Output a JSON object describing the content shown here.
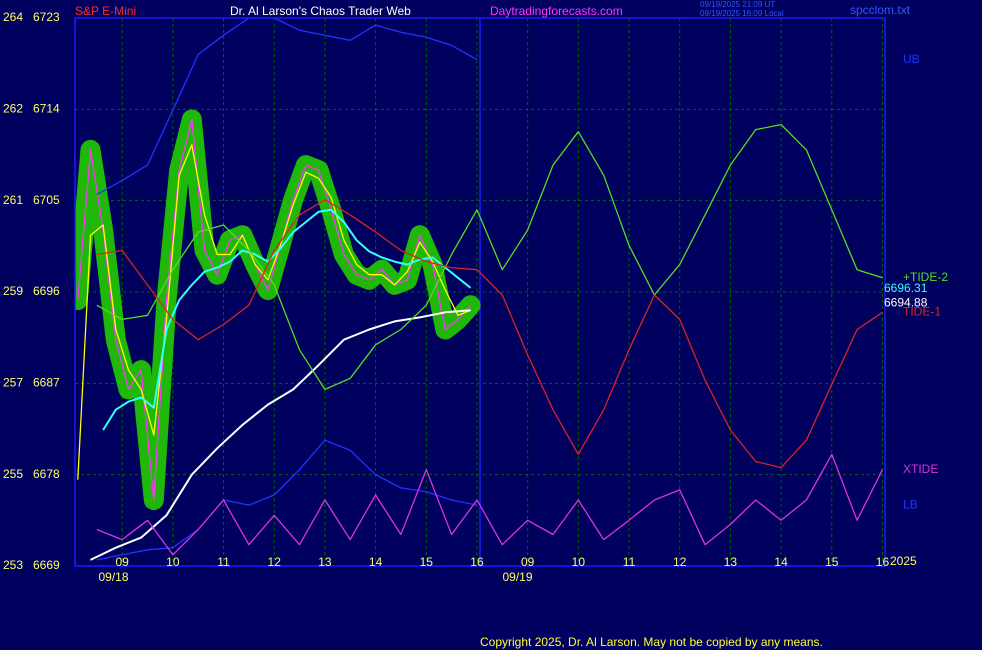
{
  "chart_data": {
    "type": "line",
    "symbol": "S&P E-Mini",
    "title": "Dr. Al Larson's Chaos Trader Web",
    "site": "Daytradingforecasts.com",
    "timestamps": [
      "09/19/2025 21:09 UT",
      "09/19/2025 16:09 Local"
    ],
    "file": "spcclom.txt",
    "copyright": "Copyright 2025, Dr. Al Larson. May not be copied by any means.",
    "year": "2025",
    "grid": true,
    "ylim": [
      6669,
      6723
    ],
    "yticks": [
      6669,
      6678,
      6687,
      6696,
      6705,
      6714,
      6723
    ],
    "y2ticks": [
      253,
      255,
      257,
      259,
      261,
      262,
      264
    ],
    "xlim": [
      -0.93,
      15.05
    ],
    "xticks": [
      {
        "value": 0,
        "label": "09"
      },
      {
        "value": 1,
        "label": "10"
      },
      {
        "value": 2,
        "label": "11"
      },
      {
        "value": 3,
        "label": "12"
      },
      {
        "value": 4,
        "label": "13"
      },
      {
        "value": 5,
        "label": "14"
      },
      {
        "value": 6,
        "label": "15"
      },
      {
        "value": 7,
        "label": "16"
      },
      {
        "value": 8,
        "label": "09"
      },
      {
        "value": 9,
        "label": "10"
      },
      {
        "value": 10,
        "label": "11"
      },
      {
        "value": 11,
        "label": "12"
      },
      {
        "value": 12,
        "label": "13"
      },
      {
        "value": 13,
        "label": "14"
      },
      {
        "value": 14,
        "label": "15"
      },
      {
        "value": 15,
        "label": "16"
      }
    ],
    "date_ticks": [
      {
        "value": -0.17,
        "label": "09/18"
      },
      {
        "value": 7.8,
        "label": "09/19"
      }
    ],
    "now_x": 7.06,
    "series": [
      {
        "color": "#ff33ff",
        "halo": "#22cc00",
        "x": [
          -0.875,
          -0.625,
          -0.375,
          -0.125,
          0.125,
          0.375,
          0.625,
          0.875,
          1.125,
          1.375,
          1.625,
          1.875,
          2.125,
          2.375,
          2.625,
          2.875,
          3.125,
          3.375,
          3.625,
          3.875,
          4.125,
          4.375,
          4.625,
          4.875,
          5.125,
          5.375,
          5.625,
          5.875,
          6.125,
          6.375,
          6.625,
          6.875
        ],
        "values": [
          6695.2,
          6710.0,
          6702.1,
          6691.3,
          6686.4,
          6688.3,
          6675.5,
          6695.2,
          6708.0,
          6713.0,
          6700.1,
          6697.7,
          6701.1,
          6701.6,
          6698.7,
          6696.2,
          6700.6,
          6705.1,
          6708.5,
          6708.0,
          6704.1,
          6699.7,
          6697.7,
          6697.2,
          6698.2,
          6696.7,
          6697.2,
          6701.6,
          6698.7,
          6692.3,
          6693.3,
          6694.7
        ]
      },
      {
        "color": "#ffff00",
        "x": [
          -0.875,
          -0.625,
          -0.375,
          -0.125,
          0.125,
          0.375,
          0.625,
          0.875,
          1.125,
          1.375,
          1.625,
          1.875,
          2.125,
          2.375,
          2.625,
          2.875,
          3.125,
          3.375,
          3.625,
          3.875,
          4.125,
          4.375,
          4.625,
          4.875,
          5.125,
          5.375,
          5.625,
          5.875,
          6.125,
          6.375,
          6.625,
          6.875
        ],
        "values": [
          6677.5,
          6701.6,
          6702.6,
          6692.3,
          6688.3,
          6686.4,
          6681.9,
          6693.3,
          6707.5,
          6710.5,
          6703.6,
          6699.7,
          6699.7,
          6701.6,
          6698.7,
          6697.2,
          6700.6,
          6704.6,
          6707.8,
          6707.2,
          6705.3,
          6701.1,
          6698.7,
          6697.7,
          6697.7,
          6696.7,
          6698.0,
          6700.9,
          6699.0,
          6696.2,
          6693.7,
          6694.2
        ]
      },
      {
        "color": "#33ffff",
        "x": [
          -0.375,
          -0.125,
          0.125,
          0.375,
          0.625,
          0.875,
          1.125,
          1.375,
          1.625,
          1.875,
          2.125,
          2.375,
          2.625,
          2.875,
          3.125,
          3.375,
          3.625,
          3.875,
          4.125,
          4.375,
          4.625,
          4.875,
          5.125,
          5.375,
          5.625,
          5.875,
          6.125,
          6.375,
          6.625,
          6.875
        ],
        "values": [
          6682.4,
          6684.4,
          6685.2,
          6685.6,
          6684.6,
          6692.3,
          6695.2,
          6696.7,
          6698.0,
          6698.4,
          6699.0,
          6700.1,
          6699.7,
          6699.0,
          6700.3,
          6701.9,
          6702.9,
          6703.9,
          6704.1,
          6702.9,
          6701.1,
          6700.0,
          6699.4,
          6699.0,
          6698.7,
          6699.2,
          6699.4,
          6698.4,
          6697.4,
          6696.4
        ]
      },
      {
        "color": "#ffffff",
        "x": [
          -0.625,
          -0.125,
          0.375,
          0.875,
          1.375,
          1.875,
          2.375,
          2.875,
          3.375,
          3.875,
          4.375,
          4.875,
          5.375,
          5.875,
          6.375,
          6.875
        ],
        "values": [
          6669.6,
          6670.8,
          6671.8,
          6674.0,
          6678.0,
          6680.6,
          6682.9,
          6684.9,
          6686.4,
          6688.8,
          6691.3,
          6692.3,
          6693.1,
          6693.5,
          6694.0,
          6694.2
        ]
      },
      {
        "name": "UB",
        "color": "#2233ff",
        "x": [
          -0.5,
          0,
          0.5,
          1,
          1.5,
          2,
          2.5,
          3,
          3.5,
          4,
          4.5,
          5,
          5.5,
          6,
          6.5,
          7
        ],
        "values": [
          6705.6,
          6707.0,
          6708.5,
          6713.9,
          6719.4,
          6721.3,
          6723.0,
          6723.0,
          6721.8,
          6721.3,
          6720.8,
          6722.3,
          6721.6,
          6721.1,
          6720.3,
          6718.9
        ]
      },
      {
        "name": "LB",
        "color": "#2233ff",
        "x": [
          -0.5,
          0,
          0.5,
          1,
          1.5,
          2,
          2.5,
          3,
          3.5,
          4,
          4.5,
          5,
          5.5,
          6,
          6.5,
          7
        ],
        "values": [
          6669.6,
          6670.1,
          6670.6,
          6670.8,
          6672.6,
          6675.5,
          6675.0,
          6676.0,
          6678.5,
          6681.4,
          6680.4,
          6678.0,
          6676.7,
          6676.3,
          6675.5,
          6675.0
        ]
      },
      {
        "name": "+TIDE-2",
        "color": "#55dd22",
        "x": [
          -0.5,
          0,
          0.5,
          1,
          1.5,
          2,
          2.5,
          3,
          3.5,
          4,
          4.5,
          5,
          5.5,
          6,
          6.5,
          7,
          7.5,
          8,
          8.5,
          9,
          9.5,
          10,
          10.5,
          11,
          11.5,
          12,
          12.5,
          13,
          13.5,
          14,
          14.5,
          15
        ],
        "values": [
          6694.7,
          6693.3,
          6693.7,
          6698.2,
          6701.9,
          6702.6,
          6700.1,
          6696.7,
          6690.3,
          6686.4,
          6687.5,
          6690.8,
          6692.3,
          6694.7,
          6699.7,
          6704.1,
          6698.2,
          6702.1,
          6708.5,
          6711.8,
          6707.5,
          6700.6,
          6695.7,
          6698.7,
          6703.6,
          6708.5,
          6712.0,
          6712.5,
          6710.0,
          6704.1,
          6698.2,
          6697.4
        ]
      },
      {
        "name": "TIDE-1",
        "color": "#dd2222",
        "x": [
          -0.5,
          0,
          0.5,
          1,
          1.5,
          2,
          2.5,
          3,
          3.5,
          4,
          4.5,
          5,
          5.5,
          6,
          6.5,
          7,
          7.5,
          8,
          8.5,
          9,
          9.5,
          10,
          10.5,
          11,
          11.5,
          12,
          12.5,
          13,
          13.5,
          14,
          14.5,
          15
        ],
        "values": [
          6699.7,
          6700.1,
          6696.7,
          6693.3,
          6691.3,
          6692.8,
          6694.7,
          6700.1,
          6703.6,
          6705.1,
          6703.6,
          6701.9,
          6700.1,
          6699.0,
          6698.4,
          6698.2,
          6695.7,
          6689.8,
          6684.4,
          6680.0,
          6684.4,
          6690.3,
          6695.7,
          6693.3,
          6687.3,
          6682.4,
          6679.3,
          6678.7,
          6681.4,
          6686.9,
          6692.3,
          6694.0
        ]
      },
      {
        "name": "XTIDE",
        "color": "#dd33dd",
        "x": [
          -0.5,
          0,
          0.5,
          1,
          1.5,
          2,
          2.5,
          3,
          3.5,
          4,
          4.5,
          5,
          5.5,
          6,
          6.5,
          7,
          7.5,
          8,
          8.5,
          9,
          9.5,
          10,
          10.5,
          11,
          11.5,
          12,
          12.5,
          13,
          13.5,
          14,
          14.5,
          15
        ],
        "values": [
          6672.6,
          6671.6,
          6673.5,
          6670.1,
          6672.6,
          6675.5,
          6671.1,
          6674.0,
          6671.1,
          6675.5,
          6671.6,
          6676.0,
          6672.1,
          6678.5,
          6672.1,
          6675.5,
          6671.1,
          6673.5,
          6672.1,
          6675.5,
          6671.6,
          6673.5,
          6675.5,
          6676.5,
          6671.1,
          6673.1,
          6675.5,
          6673.5,
          6675.5,
          6680.0,
          6673.5,
          6678.5
        ]
      }
    ],
    "readouts": [
      {
        "value": 6696.31,
        "color": "#33ffff"
      },
      {
        "value": 6694.88,
        "color": "#ffffff"
      }
    ]
  }
}
